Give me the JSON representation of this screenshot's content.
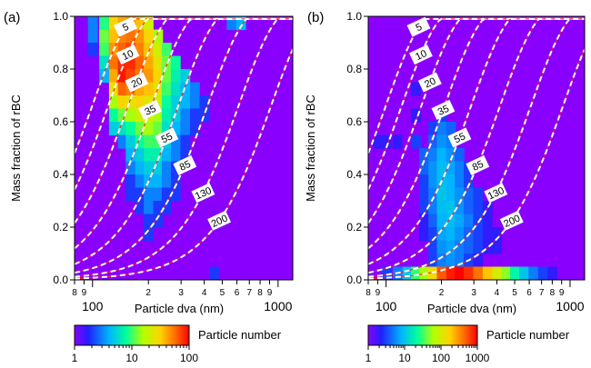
{
  "chart_data": [
    {
      "panel_label": "(a)",
      "type": "heatmap",
      "xlabel": "Particle dva (nm)",
      "ylabel": "Mass fraction of rBC",
      "xscale": "log",
      "xlim": [
        80,
        1200
      ],
      "ylim": [
        0.0,
        1.0
      ],
      "x_ticks_major": [
        100,
        1000
      ],
      "x_tick_labels": [
        "8",
        "9",
        "100",
        "2",
        "3",
        "4",
        "5",
        "6",
        "7",
        "8",
        "9",
        "1000"
      ],
      "y_tick_labels": [
        "0.0",
        "0.2",
        "0.4",
        "0.6",
        "0.8",
        "1.0"
      ],
      "contour_labels": [
        "5",
        "10",
        "20",
        "35",
        "55",
        "85",
        "130",
        "200"
      ],
      "colorbar": {
        "label": "Particle number",
        "scale": "log",
        "ticks": [
          "1",
          "10",
          "100"
        ],
        "range": [
          1,
          100
        ]
      },
      "cells": [
        [
          100,
          0.95,
          3
        ],
        [
          100,
          0.9,
          3
        ],
        [
          100,
          0.85,
          2
        ],
        [
          115,
          0.95,
          9
        ],
        [
          115,
          0.9,
          12
        ],
        [
          115,
          0.85,
          10
        ],
        [
          115,
          0.8,
          6
        ],
        [
          115,
          0.75,
          4
        ],
        [
          130,
          0.95,
          30
        ],
        [
          130,
          0.9,
          35
        ],
        [
          130,
          0.85,
          45
        ],
        [
          130,
          0.8,
          55
        ],
        [
          130,
          0.75,
          40
        ],
        [
          130,
          0.7,
          25
        ],
        [
          130,
          0.65,
          15
        ],
        [
          130,
          0.6,
          8
        ],
        [
          130,
          0.55,
          5
        ],
        [
          145,
          0.95,
          40
        ],
        [
          145,
          0.9,
          50
        ],
        [
          145,
          0.85,
          60
        ],
        [
          145,
          0.8,
          80
        ],
        [
          145,
          0.75,
          90
        ],
        [
          145,
          0.7,
          60
        ],
        [
          145,
          0.65,
          30
        ],
        [
          145,
          0.6,
          12
        ],
        [
          145,
          0.55,
          6
        ],
        [
          145,
          0.5,
          3
        ],
        [
          160,
          0.95,
          45
        ],
        [
          160,
          0.9,
          55
        ],
        [
          160,
          0.85,
          70
        ],
        [
          160,
          0.8,
          80
        ],
        [
          160,
          0.75,
          70
        ],
        [
          160,
          0.7,
          50
        ],
        [
          160,
          0.65,
          25
        ],
        [
          160,
          0.6,
          15
        ],
        [
          160,
          0.55,
          8
        ],
        [
          160,
          0.5,
          5
        ],
        [
          160,
          0.45,
          4
        ],
        [
          160,
          0.4,
          3
        ],
        [
          160,
          0.35,
          2
        ],
        [
          160,
          0.3,
          2
        ],
        [
          180,
          0.95,
          35
        ],
        [
          180,
          0.9,
          45
        ],
        [
          180,
          0.85,
          50
        ],
        [
          180,
          0.8,
          60
        ],
        [
          180,
          0.75,
          55
        ],
        [
          180,
          0.7,
          40
        ],
        [
          180,
          0.65,
          30
        ],
        [
          180,
          0.6,
          20
        ],
        [
          180,
          0.55,
          12
        ],
        [
          180,
          0.5,
          8
        ],
        [
          180,
          0.45,
          5
        ],
        [
          180,
          0.4,
          4
        ],
        [
          180,
          0.35,
          3
        ],
        [
          180,
          0.3,
          2
        ],
        [
          180,
          0.25,
          2
        ],
        [
          200,
          0.95,
          20
        ],
        [
          200,
          0.9,
          30
        ],
        [
          200,
          0.85,
          35
        ],
        [
          200,
          0.8,
          40
        ],
        [
          200,
          0.75,
          45
        ],
        [
          200,
          0.7,
          35
        ],
        [
          200,
          0.65,
          25
        ],
        [
          200,
          0.6,
          20
        ],
        [
          200,
          0.55,
          15
        ],
        [
          200,
          0.5,
          10
        ],
        [
          200,
          0.45,
          7
        ],
        [
          200,
          0.4,
          5
        ],
        [
          200,
          0.35,
          4
        ],
        [
          200,
          0.3,
          3
        ],
        [
          200,
          0.25,
          3
        ],
        [
          200,
          0.2,
          2
        ],
        [
          200,
          0.15,
          2
        ],
        [
          225,
          0.9,
          15
        ],
        [
          225,
          0.85,
          20
        ],
        [
          225,
          0.8,
          25
        ],
        [
          225,
          0.75,
          30
        ],
        [
          225,
          0.7,
          25
        ],
        [
          225,
          0.65,
          20
        ],
        [
          225,
          0.6,
          15
        ],
        [
          225,
          0.55,
          12
        ],
        [
          225,
          0.5,
          10
        ],
        [
          225,
          0.45,
          7
        ],
        [
          225,
          0.4,
          5
        ],
        [
          225,
          0.35,
          4
        ],
        [
          225,
          0.3,
          3
        ],
        [
          225,
          0.25,
          2
        ],
        [
          225,
          0.2,
          2
        ],
        [
          250,
          0.85,
          10
        ],
        [
          250,
          0.8,
          12
        ],
        [
          250,
          0.75,
          12
        ],
        [
          250,
          0.7,
          10
        ],
        [
          250,
          0.65,
          8
        ],
        [
          250,
          0.6,
          7
        ],
        [
          250,
          0.55,
          6
        ],
        [
          250,
          0.5,
          5
        ],
        [
          250,
          0.45,
          4
        ],
        [
          250,
          0.4,
          3
        ],
        [
          250,
          0.35,
          3
        ],
        [
          250,
          0.3,
          2
        ],
        [
          250,
          0.25,
          2
        ],
        [
          280,
          0.8,
          8
        ],
        [
          280,
          0.75,
          7
        ],
        [
          280,
          0.7,
          6
        ],
        [
          280,
          0.65,
          5
        ],
        [
          280,
          0.6,
          5
        ],
        [
          280,
          0.55,
          4
        ],
        [
          280,
          0.5,
          3
        ],
        [
          280,
          0.45,
          3
        ],
        [
          280,
          0.4,
          2
        ],
        [
          280,
          0.35,
          2
        ],
        [
          280,
          0.3,
          2
        ],
        [
          315,
          0.75,
          5
        ],
        [
          315,
          0.7,
          4
        ],
        [
          315,
          0.65,
          4
        ],
        [
          315,
          0.6,
          3
        ],
        [
          315,
          0.55,
          3
        ],
        [
          315,
          0.5,
          2
        ],
        [
          315,
          0.45,
          2
        ],
        [
          355,
          0.7,
          3
        ],
        [
          355,
          0.65,
          3
        ],
        [
          355,
          0.6,
          2
        ],
        [
          355,
          0.55,
          2
        ],
        [
          400,
          0.65,
          2
        ],
        [
          400,
          0.6,
          2
        ],
        [
          450,
          0.0,
          2
        ],
        [
          560,
          0.95,
          3
        ],
        [
          630,
          0.95,
          4
        ]
      ]
    },
    {
      "panel_label": "(b)",
      "type": "heatmap",
      "xlabel": "Particle dva (nm)",
      "ylabel": "Mass fraction of rBC",
      "xscale": "log",
      "xlim": [
        80,
        1200
      ],
      "ylim": [
        0.0,
        1.0
      ],
      "x_ticks_major": [
        100,
        1000
      ],
      "x_tick_labels": [
        "8",
        "9",
        "100",
        "2",
        "3",
        "4",
        "5",
        "6",
        "7",
        "8",
        "9",
        "1000"
      ],
      "y_tick_labels": [
        "0.0",
        "0.2",
        "0.4",
        "0.6",
        "0.8",
        "1.0"
      ],
      "contour_labels": [
        "5",
        "10",
        "20",
        "35",
        "55",
        "85",
        "130",
        "200"
      ],
      "colorbar": {
        "label": "Particle number",
        "scale": "log",
        "ticks": [
          "1",
          "10",
          "100",
          "1000"
        ],
        "range": [
          1,
          1000
        ]
      },
      "cells": [
        [
          90,
          0.5,
          2
        ],
        [
          100,
          0.5,
          2
        ],
        [
          115,
          0.5,
          2
        ],
        [
          145,
          0.7,
          2
        ],
        [
          145,
          0.6,
          2
        ],
        [
          145,
          0.5,
          3
        ],
        [
          160,
          0.45,
          4
        ],
        [
          160,
          0.4,
          4
        ],
        [
          160,
          0.35,
          3
        ],
        [
          160,
          0.3,
          3
        ],
        [
          160,
          0.25,
          3
        ],
        [
          160,
          0.2,
          2
        ],
        [
          160,
          0.15,
          2
        ],
        [
          180,
          0.55,
          3
        ],
        [
          180,
          0.5,
          4
        ],
        [
          180,
          0.45,
          5
        ],
        [
          180,
          0.4,
          6
        ],
        [
          180,
          0.35,
          6
        ],
        [
          180,
          0.3,
          5
        ],
        [
          180,
          0.25,
          5
        ],
        [
          180,
          0.2,
          4
        ],
        [
          180,
          0.15,
          3
        ],
        [
          180,
          0.1,
          3
        ],
        [
          180,
          0.05,
          3
        ],
        [
          200,
          0.6,
          3
        ],
        [
          200,
          0.55,
          5
        ],
        [
          200,
          0.5,
          6
        ],
        [
          200,
          0.45,
          8
        ],
        [
          200,
          0.4,
          9
        ],
        [
          200,
          0.35,
          9
        ],
        [
          200,
          0.3,
          10
        ],
        [
          200,
          0.25,
          9
        ],
        [
          200,
          0.2,
          8
        ],
        [
          200,
          0.15,
          7
        ],
        [
          200,
          0.1,
          6
        ],
        [
          200,
          0.05,
          5
        ],
        [
          225,
          0.55,
          4
        ],
        [
          225,
          0.5,
          5
        ],
        [
          225,
          0.45,
          6
        ],
        [
          225,
          0.4,
          7
        ],
        [
          225,
          0.35,
          8
        ],
        [
          225,
          0.3,
          8
        ],
        [
          225,
          0.25,
          10
        ],
        [
          225,
          0.2,
          9
        ],
        [
          225,
          0.15,
          8
        ],
        [
          225,
          0.1,
          7
        ],
        [
          225,
          0.05,
          6
        ],
        [
          250,
          0.45,
          4
        ],
        [
          250,
          0.4,
          5
        ],
        [
          250,
          0.35,
          5
        ],
        [
          250,
          0.3,
          6
        ],
        [
          250,
          0.25,
          6
        ],
        [
          250,
          0.2,
          7
        ],
        [
          250,
          0.15,
          6
        ],
        [
          250,
          0.1,
          5
        ],
        [
          250,
          0.05,
          5
        ],
        [
          280,
          0.4,
          3
        ],
        [
          280,
          0.35,
          3
        ],
        [
          280,
          0.3,
          4
        ],
        [
          280,
          0.25,
          4
        ],
        [
          280,
          0.2,
          5
        ],
        [
          280,
          0.15,
          4
        ],
        [
          280,
          0.1,
          4
        ],
        [
          280,
          0.05,
          3
        ],
        [
          315,
          0.3,
          3
        ],
        [
          315,
          0.25,
          3
        ],
        [
          315,
          0.2,
          3
        ],
        [
          315,
          0.15,
          3
        ],
        [
          315,
          0.1,
          3
        ],
        [
          315,
          0.05,
          2
        ],
        [
          355,
          0.25,
          2
        ],
        [
          355,
          0.2,
          2
        ],
        [
          355,
          0.15,
          2
        ],
        [
          355,
          0.1,
          2
        ],
        [
          400,
          0.15,
          2
        ],
        [
          400,
          0.1,
          2
        ],
        [
          100,
          0.0,
          3
        ],
        [
          115,
          0.0,
          5
        ],
        [
          130,
          0.0,
          10
        ],
        [
          145,
          0.0,
          30
        ],
        [
          160,
          0.0,
          60
        ],
        [
          180,
          0.0,
          150
        ],
        [
          200,
          0.0,
          500
        ],
        [
          225,
          0.0,
          800
        ],
        [
          250,
          0.0,
          1000
        ],
        [
          280,
          0.0,
          700
        ],
        [
          315,
          0.0,
          400
        ],
        [
          355,
          0.0,
          200
        ],
        [
          400,
          0.0,
          100
        ],
        [
          450,
          0.0,
          50
        ],
        [
          500,
          0.0,
          20
        ],
        [
          560,
          0.0,
          10
        ],
        [
          630,
          0.0,
          5
        ],
        [
          710,
          0.0,
          3
        ],
        [
          800,
          0.0,
          2
        ]
      ]
    }
  ]
}
